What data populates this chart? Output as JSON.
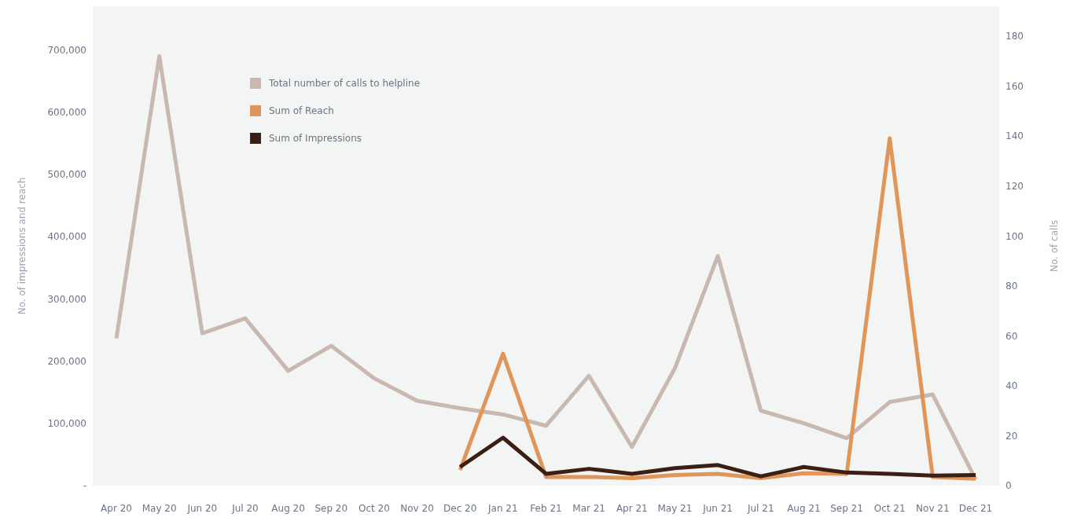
{
  "chart_data": {
    "type": "line",
    "categories": [
      "Apr 20",
      "May 20",
      "Jun 20",
      "Jul 20",
      "Aug 20",
      "Sep 20",
      "Oct 20",
      "Nov 20",
      "Dec 20",
      "Jan 21",
      "Feb 21",
      "Mar 21",
      "Apr 21",
      "May 21",
      "Jun 21",
      "Jul 21",
      "Aug 21",
      "Sep 21",
      "Oct 21",
      "Nov 21",
      "Dec 21"
    ],
    "series": [
      {
        "name": "Total number of calls to helpline",
        "color": "#c9b8b0",
        "axis": "y2",
        "values": [
          59,
          172,
          61,
          67,
          46,
          56,
          43,
          34,
          31,
          28.5,
          24,
          44,
          15.5,
          47,
          92,
          30,
          25,
          19,
          33.5,
          36.5,
          2.5
        ]
      },
      {
        "name": "Sum of Reach",
        "color": "#e0965a",
        "values": [
          null,
          null,
          null,
          null,
          null,
          null,
          null,
          null,
          25000,
          212000,
          14000,
          14000,
          12000,
          17000,
          19000,
          12000,
          20000,
          19000,
          558000,
          14000,
          11000
        ]
      },
      {
        "name": "Sum of Impressions",
        "color": "#3b1e14",
        "values": [
          null,
          null,
          null,
          null,
          null,
          null,
          null,
          null,
          30000,
          77000,
          19000,
          27000,
          19000,
          28000,
          33000,
          15000,
          30000,
          21000,
          19000,
          16000,
          17000
        ]
      }
    ],
    "ylabel": "No. of impressions and reach",
    "y2label": "No. of calls",
    "ylim": [
      0,
      770000
    ],
    "yticks": [
      {
        "value": 0,
        "label": "-"
      },
      {
        "value": 100000,
        "label": "100,000"
      },
      {
        "value": 200000,
        "label": "200,000"
      },
      {
        "value": 300000,
        "label": "300,000"
      },
      {
        "value": 400000,
        "label": "400,000"
      },
      {
        "value": 500000,
        "label": "500,000"
      },
      {
        "value": 600000,
        "label": "600,000"
      },
      {
        "value": 700000,
        "label": "700,000"
      }
    ],
    "y2lim": [
      0,
      192
    ],
    "y2ticks": [
      0,
      20,
      40,
      60,
      80,
      100,
      120,
      140,
      160,
      180
    ],
    "grid": false,
    "legend": "top left",
    "marker": "none",
    "line_style": "solid"
  }
}
